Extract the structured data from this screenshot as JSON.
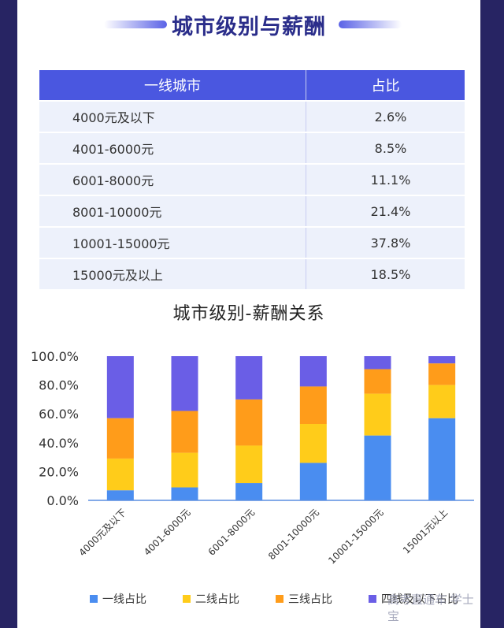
{
  "header": {
    "title": "城市级别与薪酬"
  },
  "table": {
    "headers": [
      "一线城市",
      "占比"
    ],
    "rows": [
      {
        "range": "4000元及以下",
        "pct": "2.6%"
      },
      {
        "range": "4001-6000元",
        "pct": "8.5%"
      },
      {
        "range": "6001-8000元",
        "pct": "11.1%"
      },
      {
        "range": "8001-10000元",
        "pct": "21.4%"
      },
      {
        "range": "10001-15000元",
        "pct": "37.8%"
      },
      {
        "range": "15000元及以上",
        "pct": "18.5%"
      }
    ]
  },
  "chart_data": {
    "type": "bar",
    "stacked": true,
    "title": "城市级别-薪酬关系",
    "categories": [
      "4000元及以下",
      "4001-6000元",
      "6001-8000元",
      "8001-10000元",
      "10001-15000元",
      "15001元以上"
    ],
    "y_tick_labels": [
      "0.0%",
      "20.0%",
      "40.0%",
      "60.0%",
      "80.0%",
      "100.0%"
    ],
    "ylim": [
      0,
      100
    ],
    "series": [
      {
        "name": "一线占比",
        "color": "#4a8df0",
        "values": [
          7,
          9,
          12,
          26,
          45,
          57
        ]
      },
      {
        "name": "二线占比",
        "color": "#ffcc1a",
        "values": [
          22,
          24,
          26,
          27,
          29,
          23
        ]
      },
      {
        "name": "三线占比",
        "color": "#ff9c1a",
        "values": [
          28,
          29,
          32,
          26,
          17,
          15
        ]
      },
      {
        "name": "四线及以下占比",
        "color": "#6a5ee6",
        "values": [
          43,
          38,
          30,
          21,
          9,
          5
        ]
      }
    ],
    "legend": "bottom",
    "grid": false
  },
  "watermark": "高考直通车 学士宝"
}
